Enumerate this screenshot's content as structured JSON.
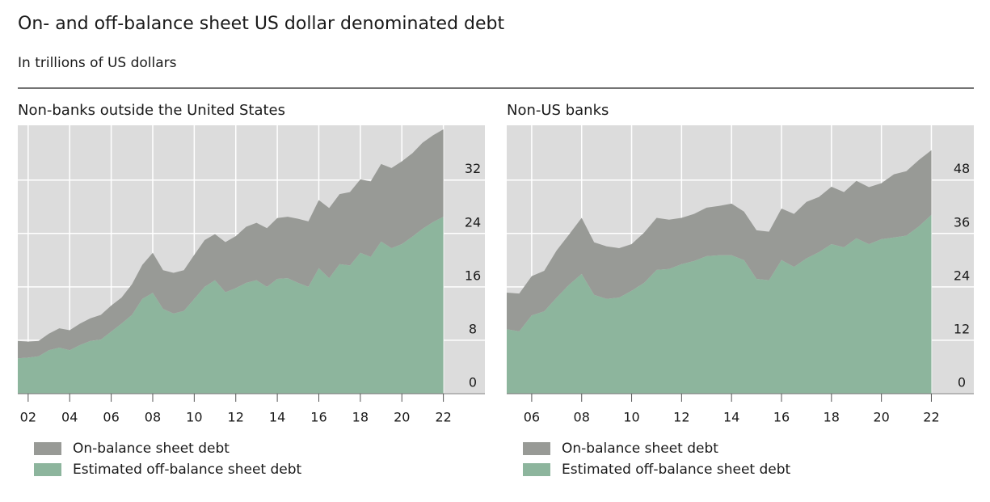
{
  "header": {
    "title": "On- and off-balance sheet US dollar denominated debt",
    "subtitle": "In trillions of US dollars"
  },
  "chart_data": [
    {
      "type": "area",
      "stacked": true,
      "title": "Non-banks outside the United States",
      "x": [
        2002,
        2002.5,
        2003,
        2003.5,
        2004,
        2004.5,
        2005,
        2005.5,
        2006,
        2006.5,
        2007,
        2007.5,
        2008,
        2008.5,
        2009,
        2009.5,
        2010,
        2010.5,
        2011,
        2011.5,
        2012,
        2012.5,
        2013,
        2013.5,
        2014,
        2014.5,
        2015,
        2015.5,
        2016,
        2016.5,
        2017,
        2017.5,
        2018,
        2018.5,
        2019,
        2019.5,
        2020,
        2020.5,
        2021,
        2021.5,
        2022,
        2022.5
      ],
      "series": [
        {
          "name": "On-balance sheet debt",
          "color": "#989a96",
          "values": [
            2.6,
            2.4,
            2.3,
            2.5,
            2.9,
            3.0,
            3.2,
            3.4,
            3.7,
            3.9,
            3.9,
            4.6,
            5.1,
            6.0,
            5.8,
            6.1,
            6.1,
            6.6,
            7.0,
            6.9,
            7.5,
            7.8,
            8.4,
            8.6,
            8.8,
            9.1,
            9.2,
            9.6,
            9.8,
            10.2,
            10.5,
            10.5,
            11.0,
            11.0,
            11.3,
            11.6,
            12.0,
            12.4,
            12.5,
            12.9,
            13.0,
            13.1
          ]
        },
        {
          "name": "Estimated off-balance sheet debt",
          "color": "#8db59d",
          "values": [
            5.3,
            5.4,
            5.6,
            6.5,
            6.9,
            6.5,
            7.3,
            7.9,
            8.1,
            9.3,
            10.5,
            11.8,
            14.2,
            15.1,
            12.7,
            12.0,
            12.4,
            14.2,
            16.0,
            17.0,
            15.2,
            15.8,
            16.6,
            17.0,
            16.0,
            17.2,
            17.3,
            16.6,
            16.0,
            18.8,
            17.3,
            19.4,
            19.2,
            21.1,
            20.5,
            22.8,
            21.8,
            22.4,
            23.5,
            24.7,
            25.7,
            26.5
          ]
        }
      ],
      "xlim": [
        2002,
        2024.5
      ],
      "ylim": [
        0,
        40.2
      ],
      "xticks": [
        {
          "value": 2002.5,
          "label": "02"
        },
        {
          "value": 2004.5,
          "label": "04"
        },
        {
          "value": 2006.5,
          "label": "06"
        },
        {
          "value": 2008.5,
          "label": "08"
        },
        {
          "value": 2010.5,
          "label": "10"
        },
        {
          "value": 2012.5,
          "label": "12"
        },
        {
          "value": 2014.5,
          "label": "14"
        },
        {
          "value": 2016.5,
          "label": "16"
        },
        {
          "value": 2018.5,
          "label": "18"
        },
        {
          "value": 2020.5,
          "label": "20"
        },
        {
          "value": 2022.5,
          "label": "22"
        }
      ],
      "yticks": [
        0,
        8,
        16,
        24,
        32
      ],
      "grid": true
    },
    {
      "type": "area",
      "stacked": true,
      "title": "Non-US banks",
      "x": [
        2005.5,
        2006,
        2006.5,
        2007,
        2007.5,
        2008,
        2008.5,
        2009,
        2009.5,
        2010,
        2010.5,
        2011,
        2011.5,
        2012,
        2012.5,
        2013,
        2013.5,
        2014,
        2014.5,
        2015,
        2015.5,
        2016,
        2016.5,
        2017,
        2017.5,
        2018,
        2018.5,
        2019,
        2019.5,
        2020,
        2020.5,
        2021,
        2021.5,
        2022,
        2022.5
      ],
      "series": [
        {
          "name": "On-balance sheet debt",
          "color": "#989a96",
          "values": [
            8.2,
            8.5,
            8.8,
            9.1,
            10.6,
            11.3,
            12.6,
            11.8,
            11.8,
            11.1,
            10.5,
            11.3,
            11.7,
            11.1,
            10.4,
            10.6,
            10.9,
            11.1,
            11.6,
            10.9,
            10.9,
            10.9,
            11.6,
            11.9,
            12.7,
            12.4,
            12.9,
            12.4,
            12.9,
            12.8,
            12.6,
            14.2,
            14.5,
            14.9,
            14.5
          ]
        },
        {
          "name": "Estimated off-balance sheet debt",
          "color": "#8db59d",
          "values": [
            14.5,
            14.0,
            17.6,
            18.5,
            21.6,
            24.5,
            26.9,
            22.2,
            21.3,
            21.6,
            23.1,
            24.9,
            27.8,
            28.0,
            29.1,
            29.8,
            30.9,
            31.1,
            31.1,
            30.0,
            25.8,
            25.5,
            30.0,
            28.5,
            30.4,
            31.8,
            33.6,
            32.9,
            34.9,
            33.6,
            34.7,
            35.1,
            35.5,
            37.6,
            40.2
          ]
        }
      ],
      "xlim": [
        2005.5,
        2024.2
      ],
      "ylim": [
        0,
        60.3
      ],
      "xticks": [
        {
          "value": 2006.5,
          "label": "06"
        },
        {
          "value": 2008.5,
          "label": "08"
        },
        {
          "value": 2010.5,
          "label": "10"
        },
        {
          "value": 2012.5,
          "label": "12"
        },
        {
          "value": 2014.5,
          "label": "14"
        },
        {
          "value": 2016.5,
          "label": "16"
        },
        {
          "value": 2018.5,
          "label": "18"
        },
        {
          "value": 2020.5,
          "label": "20"
        },
        {
          "value": 2022.5,
          "label": "22"
        }
      ],
      "yticks": [
        0,
        12,
        24,
        36,
        48
      ],
      "grid": true
    }
  ]
}
